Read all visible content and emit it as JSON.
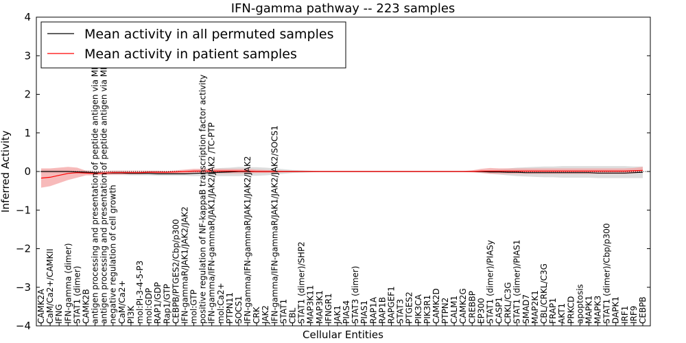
{
  "chart_data": {
    "type": "line",
    "title": "IFN-gamma pathway -- 223 samples",
    "xlabel": "Cellular Entities",
    "ylabel": "Inferred Activity",
    "ylim": [
      -4,
      4
    ],
    "yticks": [
      4,
      3,
      2,
      1,
      0,
      -1,
      -2,
      -3,
      -4
    ],
    "ytick_labels": [
      "4",
      "3",
      "2",
      "1",
      "0",
      "−1",
      "−2",
      "−3",
      "−4"
    ],
    "grid": false,
    "legend_placement": "top-left",
    "categories": [
      "CAMK2A",
      "CaM/Ca2+/CAMKII",
      "IFNG",
      "IFN-gamma (dimer)",
      "STAT1 (dimer)",
      "CAMK2B",
      "antigen processing and presentation of peptide antigen via MHC class I",
      "antigen processing and presentation of peptide antigen via MHC class II",
      "negative regulation of cell growth",
      "CaM/Ca2+",
      "PI3K",
      "mol:PI-3-4-5-P3",
      "mol:GDP",
      "RAP1/GDP",
      "Rap1/GTP",
      "CEBPB/PTGES2/Cbp/p300",
      "IFN-gammaR/JAK1/JAK2/JAK2",
      "mol:GTP",
      "positive regulation of NF-kappaB transcription factor activity",
      "IFN-gamma/IFN-gammaR/JAK1/JAK2/JAK2 /TC-PTP",
      "mol:Ca2+",
      "PTPN11",
      "SOCS1",
      "IFN-gamma/IFN-gammaR/JAK1/JAK2/JAK2",
      "CRK",
      "JAK2",
      "IFN-gamma/IFN-gammaR/JAK1/JAK2/JAK2/SOCS1",
      "STAT1",
      "CBL",
      "STAT1 (dimer)/SHP2",
      "MAP3K11",
      "MAP3K1",
      "IFNGR1",
      "JAK1",
      "PIAS4",
      "STAT3 (dimer)",
      "PIAS1",
      "RAP1A",
      "RAP1B",
      "RAPGEF1",
      "STAT3",
      "PTGES2",
      "PIK3CA",
      "PIK3R1",
      "CAMK2D",
      "PTPN2",
      "CALM1",
      "CAMK2G",
      "CREBBP",
      "EP300",
      "STAT1 (dimer)/PIASy",
      "CASP1",
      "CRKL/C3G",
      "STAT1 (dimer)/PIAS1",
      "SMAD7",
      "MAP2K1",
      "CBL/CRKL/C3G",
      "FRAP1",
      "AKT1",
      "PRKCD",
      "apoptosis",
      "MAPK1",
      "MAPK3",
      "STAT1 (dimer)/Cbp/p300",
      "DAPK1",
      "IRF1",
      "IRF9",
      "CEBPB"
    ],
    "series": [
      {
        "name": "Mean activity in all permuted samples",
        "color": "#000000",
        "band_color": "#d9d9d9",
        "values": [
          0.0,
          0.0,
          0.0,
          0.0,
          -0.01,
          -0.02,
          -0.03,
          -0.04,
          -0.04,
          -0.04,
          -0.05,
          -0.05,
          -0.05,
          -0.06,
          -0.06,
          -0.06,
          -0.06,
          -0.05,
          -0.04,
          -0.03,
          -0.02,
          -0.01,
          0.0,
          0.0,
          0.0,
          0.0,
          0.0,
          0.0,
          0.0,
          0.0,
          0.0,
          0.0,
          0.0,
          0.0,
          0.0,
          0.0,
          0.0,
          0.0,
          0.0,
          0.0,
          0.0,
          0.0,
          0.0,
          0.0,
          0.0,
          0.0,
          0.0,
          0.0,
          0.0,
          0.0,
          -0.01,
          -0.01,
          -0.02,
          -0.02,
          -0.03,
          -0.03,
          -0.03,
          -0.03,
          -0.03,
          -0.03,
          -0.03,
          -0.03,
          -0.04,
          -0.04,
          -0.04,
          -0.04,
          -0.03,
          -0.02
        ],
        "band_low": [
          -0.05,
          -0.05,
          -0.05,
          -0.05,
          -0.06,
          -0.07,
          -0.08,
          -0.09,
          -0.09,
          -0.09,
          -0.1,
          -0.1,
          -0.1,
          -0.11,
          -0.11,
          -0.11,
          -0.11,
          -0.12,
          -0.12,
          -0.12,
          -0.12,
          -0.12,
          -0.12,
          -0.11,
          -0.11,
          -0.1,
          -0.08,
          -0.06,
          -0.04,
          -0.03,
          -0.02,
          -0.01,
          -0.01,
          -0.01,
          -0.01,
          -0.01,
          -0.01,
          -0.01,
          -0.01,
          -0.01,
          -0.01,
          -0.01,
          -0.01,
          -0.01,
          -0.01,
          -0.01,
          -0.01,
          -0.01,
          -0.01,
          -0.03,
          -0.06,
          -0.08,
          -0.1,
          -0.12,
          -0.13,
          -0.14,
          -0.15,
          -0.15,
          -0.16,
          -0.16,
          -0.16,
          -0.16,
          -0.17,
          -0.17,
          -0.17,
          -0.17,
          -0.17,
          -0.17
        ],
        "band_high": [
          0.05,
          0.05,
          0.05,
          0.05,
          0.04,
          0.03,
          0.02,
          0.01,
          0.01,
          0.01,
          0.0,
          0.0,
          0.0,
          -0.01,
          -0.01,
          -0.01,
          -0.01,
          0.02,
          0.05,
          0.07,
          0.09,
          0.1,
          0.12,
          0.11,
          0.11,
          0.1,
          0.08,
          0.06,
          0.04,
          0.03,
          0.02,
          0.01,
          0.01,
          0.01,
          0.01,
          0.01,
          0.01,
          0.01,
          0.01,
          0.01,
          0.01,
          0.01,
          0.01,
          0.01,
          0.01,
          0.01,
          0.01,
          0.01,
          0.01,
          0.02,
          0.04,
          0.06,
          0.08,
          0.1,
          0.11,
          0.12,
          0.13,
          0.13,
          0.14,
          0.14,
          0.14,
          0.14,
          0.14,
          0.14,
          0.14,
          0.14,
          0.13,
          0.13
        ]
      },
      {
        "name": "Mean activity in patient samples",
        "color": "#ff0000",
        "band_color": "#f4a3a3",
        "values": [
          -0.17,
          -0.15,
          -0.1,
          -0.05,
          -0.03,
          -0.04,
          -0.05,
          -0.04,
          -0.03,
          -0.03,
          -0.03,
          -0.03,
          -0.02,
          -0.02,
          -0.02,
          -0.01,
          0.0,
          0.01,
          0.01,
          0.01,
          0.01,
          0.01,
          0.01,
          0.01,
          0.0,
          0.0,
          0.0,
          0.0,
          0.0,
          0.0,
          0.0,
          0.0,
          0.0,
          0.0,
          0.0,
          0.0,
          0.0,
          0.0,
          0.0,
          0.0,
          0.0,
          0.0,
          0.0,
          0.0,
          0.0,
          0.0,
          0.0,
          0.0,
          0.0,
          0.01,
          0.01,
          0.01,
          0.01,
          0.01,
          0.01,
          0.01,
          0.01,
          0.01,
          0.01,
          0.01,
          0.01,
          0.01,
          0.01,
          0.01,
          0.01,
          0.01,
          0.02,
          0.03
        ],
        "band_low": [
          -0.42,
          -0.38,
          -0.3,
          -0.22,
          -0.16,
          -0.1,
          -0.1,
          -0.09,
          -0.08,
          -0.08,
          -0.07,
          -0.07,
          -0.06,
          -0.06,
          -0.05,
          -0.05,
          -0.05,
          -0.05,
          -0.05,
          -0.05,
          -0.05,
          -0.05,
          -0.05,
          -0.05,
          -0.04,
          -0.04,
          -0.03,
          -0.02,
          -0.02,
          -0.01,
          -0.01,
          -0.01,
          -0.01,
          -0.01,
          -0.01,
          -0.01,
          -0.01,
          -0.01,
          -0.01,
          -0.01,
          -0.01,
          -0.01,
          -0.01,
          -0.01,
          -0.01,
          -0.01,
          -0.01,
          -0.01,
          -0.02,
          -0.04,
          -0.06,
          -0.06,
          -0.06,
          -0.06,
          -0.06,
          -0.06,
          -0.06,
          -0.06,
          -0.06,
          -0.06,
          -0.06,
          -0.06,
          -0.06,
          -0.06,
          -0.06,
          -0.06,
          -0.05,
          -0.02
        ],
        "band_high": [
          0.08,
          0.08,
          0.1,
          0.12,
          0.1,
          0.02,
          0.0,
          0.01,
          0.02,
          0.02,
          0.02,
          0.02,
          0.02,
          0.02,
          0.01,
          0.03,
          0.05,
          0.07,
          0.07,
          0.07,
          0.07,
          0.07,
          0.07,
          0.07,
          0.05,
          0.04,
          0.03,
          0.02,
          0.02,
          0.01,
          0.01,
          0.01,
          0.01,
          0.01,
          0.01,
          0.01,
          0.01,
          0.01,
          0.01,
          0.01,
          0.01,
          0.01,
          0.01,
          0.01,
          0.01,
          0.01,
          0.01,
          0.01,
          0.03,
          0.07,
          0.09,
          0.08,
          0.08,
          0.08,
          0.08,
          0.08,
          0.08,
          0.08,
          0.08,
          0.08,
          0.08,
          0.08,
          0.08,
          0.08,
          0.08,
          0.08,
          0.09,
          0.12
        ]
      }
    ]
  }
}
